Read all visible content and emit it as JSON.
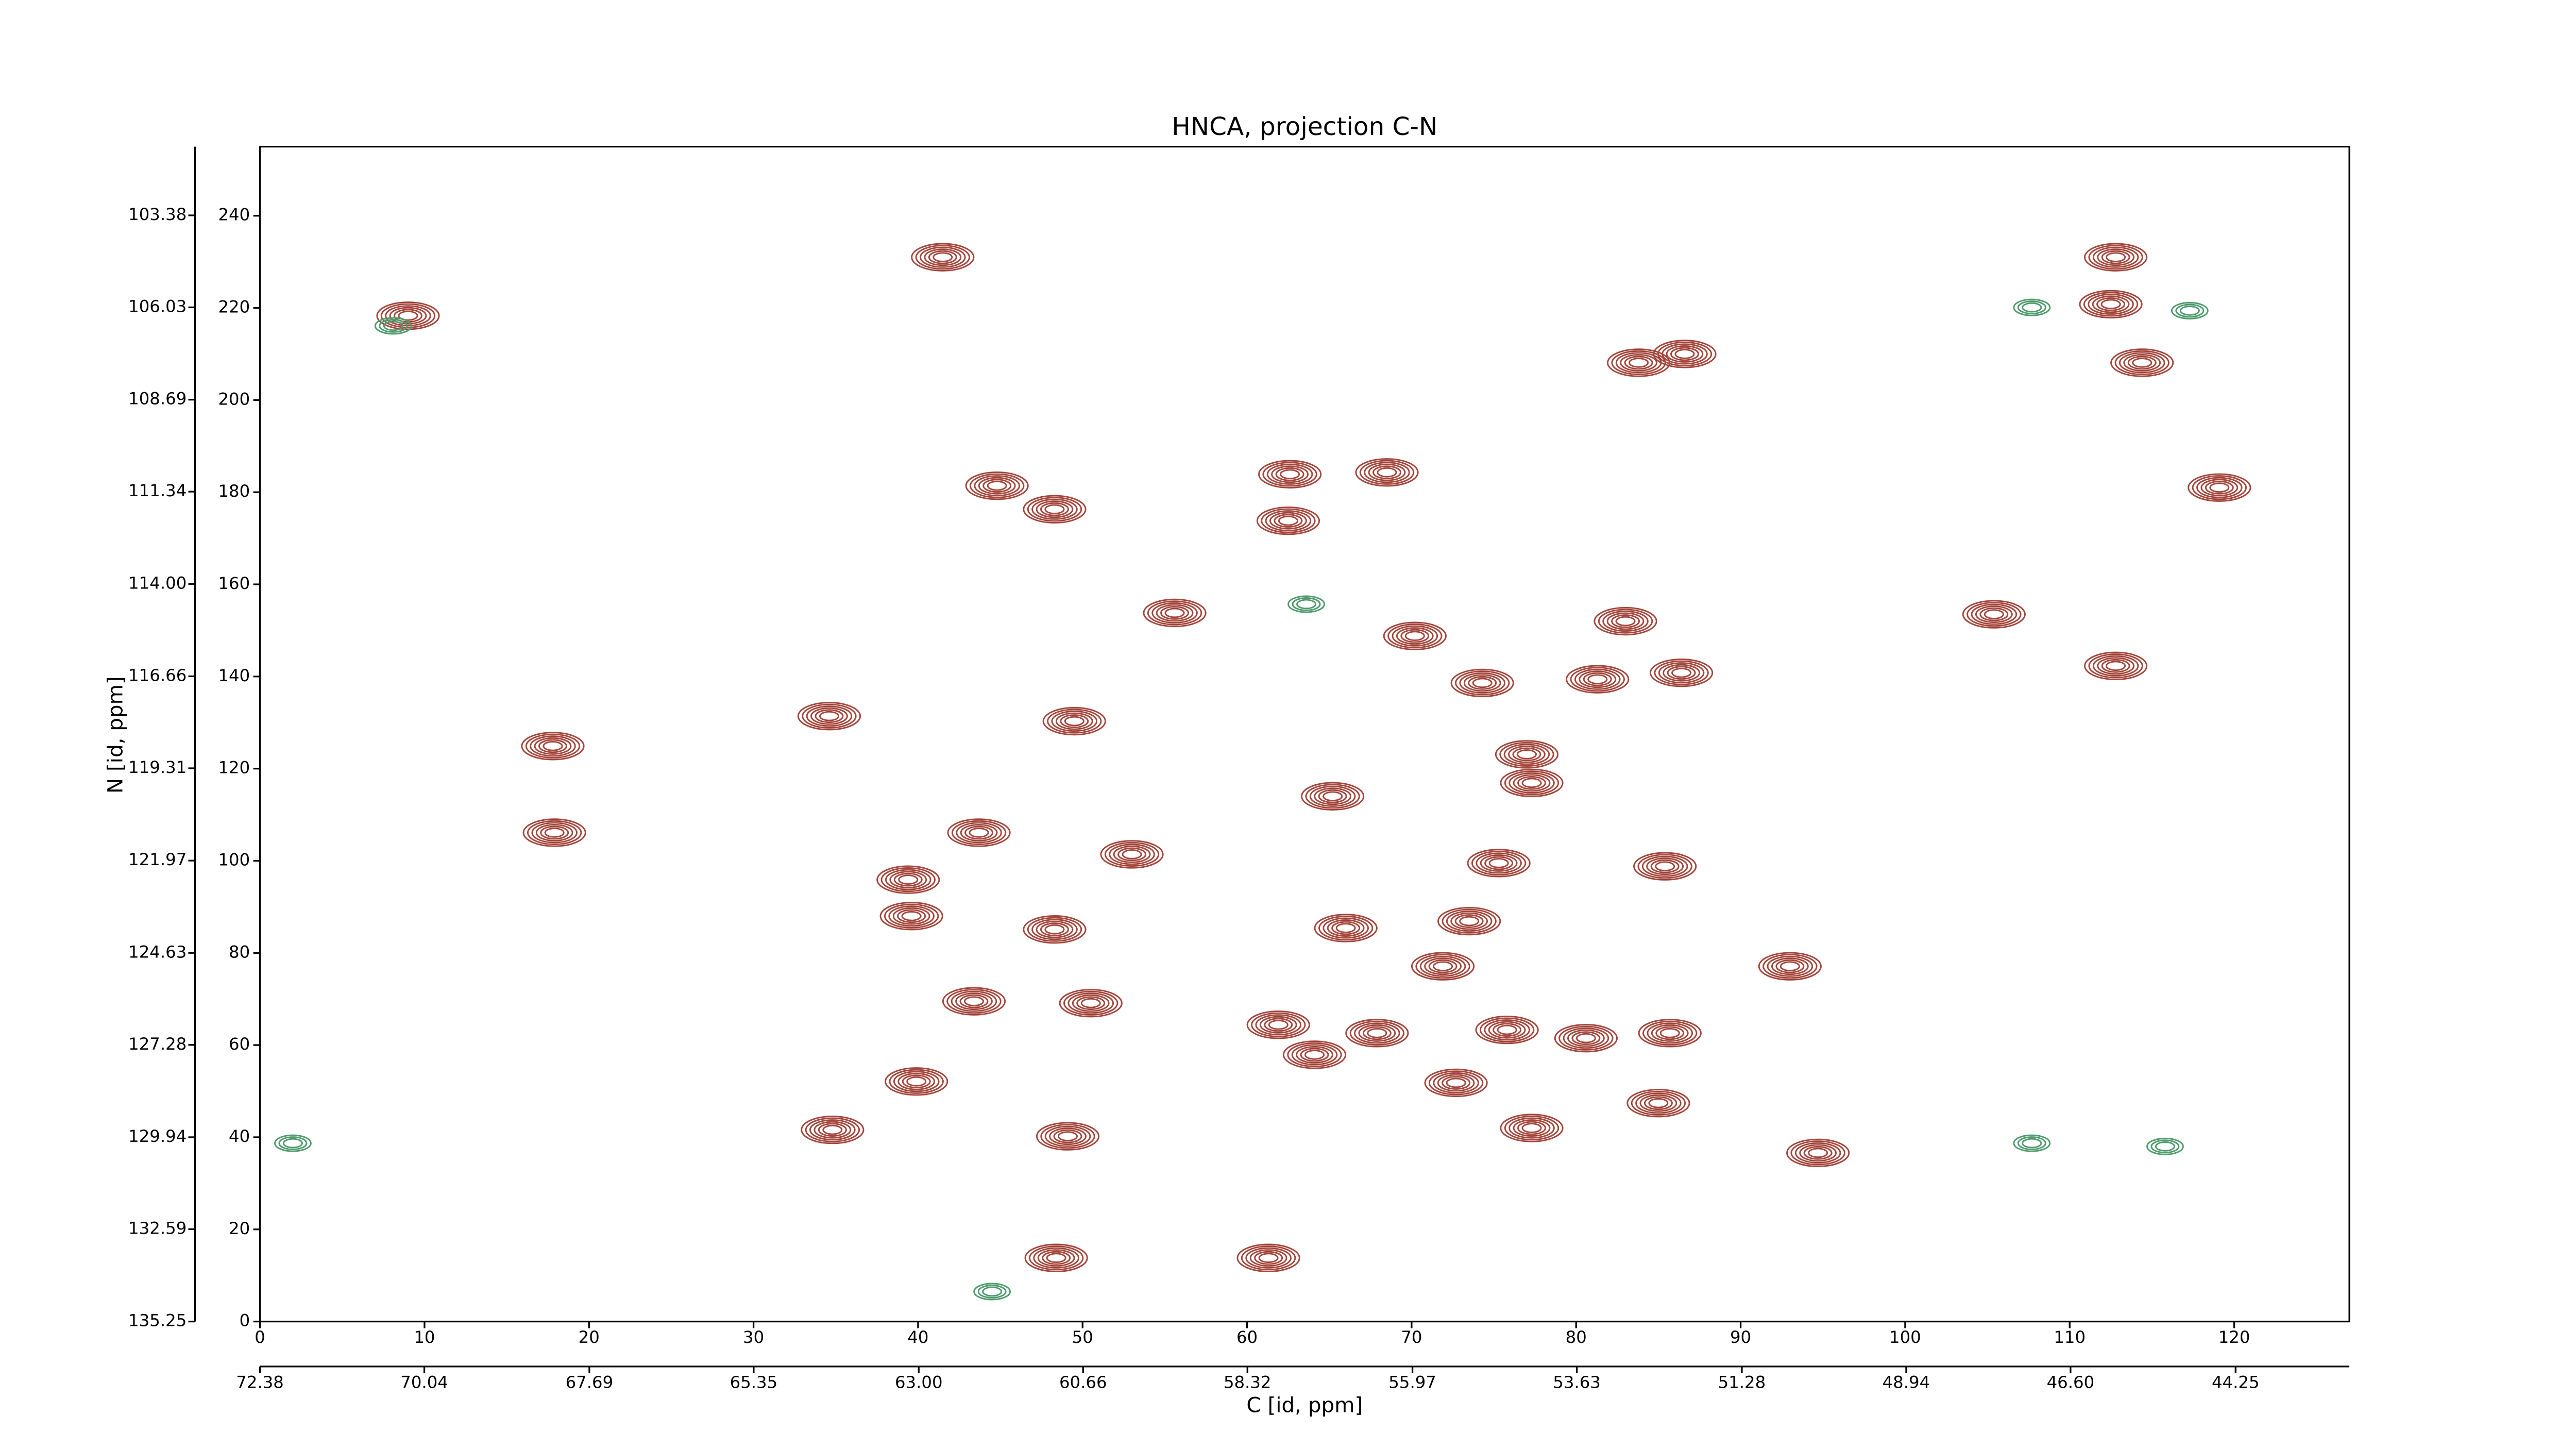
{
  "chart_data": {
    "type": "contour",
    "title": "HNCA, projection C-N",
    "x_label": "C [id, ppm]",
    "y_label": "N [id, ppm]",
    "xlim": [
      0,
      127
    ],
    "xticks": [
      0,
      10,
      20,
      30,
      40,
      50,
      60,
      70,
      80,
      90,
      100,
      110,
      120
    ],
    "ylim": [
      0,
      255
    ],
    "yticks": [
      0,
      20,
      40,
      60,
      80,
      100,
      120,
      140,
      160,
      180,
      200,
      220,
      240
    ],
    "x2lim": [
      72.38,
      42.63
    ],
    "x2ticks": [
      72.38,
      70.04,
      67.69,
      65.35,
      {
        "value": 63,
        "label": "63.00"
      },
      60.66,
      58.32,
      55.97,
      53.63,
      51.28,
      48.94,
      {
        "value": 46.6,
        "label": "46.60"
      },
      44.25
    ],
    "y2lim": [
      135.25,
      101.4
    ],
    "y2ticks": [
      135.25,
      132.59,
      129.94,
      127.28,
      124.63,
      121.97,
      119.31,
      116.66,
      {
        "value": 114,
        "label": "114.00"
      },
      111.34,
      108.69,
      106.03,
      103.38
    ],
    "series": [
      {
        "color": "#a3453b",
        "x": [
          44.8,
          48.3,
          62.6,
          68.5,
          62.5,
          41.5,
          112.8,
          112.5,
          114.4,
          119.1,
          112.8,
          105.4,
          83.0,
          86.4,
          34.6,
          49.5,
          55.6,
          70.2,
          74.3,
          81.3,
          77.0,
          77.3,
          65.2,
          43.7,
          53.0,
          75.3,
          85.4,
          39.4,
          39.6,
          48.3,
          66.0,
          73.5,
          71.9,
          93.0,
          43.4,
          50.5,
          61.9,
          67.9,
          75.8,
          80.6,
          85.7,
          64.1,
          39.9,
          72.7,
          77.3,
          85.0,
          34.8,
          48.4,
          61.3,
          17.9,
          9.0,
          17.8,
          94.7,
          49.1,
          86.6,
          83.8
        ],
        "values": [
          181.4,
          176.3,
          183.9,
          184.3,
          173.8,
          231.0,
          231.0,
          220.8,
          208.1,
          181.0,
          142.3,
          153.5,
          152.0,
          140.8,
          131.4,
          130.3,
          153.8,
          148.8,
          138.6,
          139.4,
          123.1,
          116.9,
          114.0,
          106.1,
          101.4,
          99.5,
          98.8,
          95.9,
          88.0,
          85.1,
          85.4,
          86.9,
          77.1,
          77.1,
          69.5,
          69.1,
          64.4,
          62.6,
          63.3,
          61.5,
          62.6,
          57.9,
          52.1,
          51.8,
          42.0,
          47.4,
          41.6,
          13.8,
          13.8,
          106.1,
          218.3,
          124.9,
          36.6,
          40.2,
          210.0,
          208.1
        ]
      },
      {
        "color": "#4f9a6c",
        "x": [
          107.7,
          117.3,
          115.8,
          107.7,
          8.1,
          2.0,
          63.6,
          44.5
        ],
        "values": [
          220.1,
          219.4,
          38.0,
          38.7,
          216.1,
          38.7,
          155.7,
          6.5
        ]
      }
    ]
  }
}
